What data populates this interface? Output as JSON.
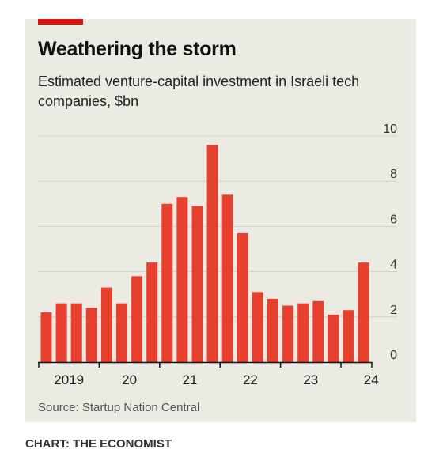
{
  "header": {
    "title": "Weathering the storm",
    "subtitle": "Estimated venture-capital investment in Israeli tech companies, $bn"
  },
  "source": "Source: Startup Nation Central",
  "footer": "CHART: THE ECONOMIST",
  "colors": {
    "bar": "#e7402f",
    "accent": "#e3120b",
    "panel": "#ebebe4",
    "grid": "#cfcfc8"
  },
  "chart_data": {
    "type": "bar",
    "title": "Weathering the storm",
    "subtitle": "Estimated venture-capital investment in Israeli tech companies, $bn",
    "xlabel": "",
    "ylabel": "",
    "ylim": [
      0,
      10
    ],
    "yticks": [
      "0",
      "2",
      "4",
      "6",
      "8",
      "10"
    ],
    "x_tick_labels": [
      {
        "label": "2019",
        "index": 0
      },
      {
        "label": "20",
        "index": 4
      },
      {
        "label": "21",
        "index": 8
      },
      {
        "label": "22",
        "index": 12
      },
      {
        "label": "23",
        "index": 16
      },
      {
        "label": "24",
        "index": 20
      }
    ],
    "categories": [
      "2019 Q1",
      "2019 Q2",
      "2019 Q3",
      "2019 Q4",
      "2020 Q1",
      "2020 Q2",
      "2020 Q3",
      "2020 Q4",
      "2021 Q1",
      "2021 Q2",
      "2021 Q3",
      "2021 Q4",
      "2022 Q1",
      "2022 Q2",
      "2022 Q3",
      "2022 Q4",
      "2023 Q1",
      "2023 Q2",
      "2023 Q3",
      "2023 Q4",
      "2024 Q1",
      "2024 Q2"
    ],
    "values": [
      2.2,
      2.6,
      2.6,
      2.4,
      3.3,
      2.6,
      3.8,
      4.4,
      7.0,
      7.3,
      6.9,
      9.6,
      7.4,
      5.7,
      3.1,
      2.8,
      2.5,
      2.6,
      2.7,
      2.1,
      2.3,
      4.4
    ],
    "grid": true,
    "y_axis_side": "right"
  }
}
